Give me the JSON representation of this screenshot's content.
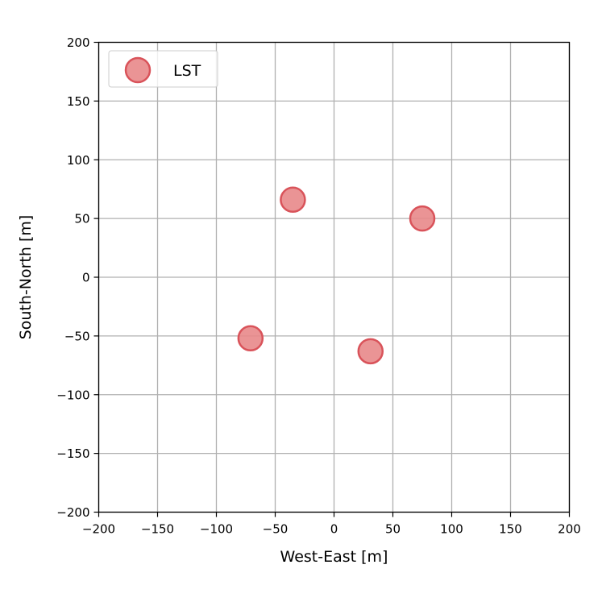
{
  "chart_data": {
    "type": "scatter",
    "title": "",
    "xlabel": "West-East [m]",
    "ylabel": "South-North [m]",
    "xlim": [
      -200,
      200
    ],
    "ylim": [
      -200,
      200
    ],
    "xticks": [
      -200,
      -150,
      -100,
      -50,
      0,
      50,
      100,
      150,
      200
    ],
    "yticks": [
      -200,
      -150,
      -100,
      -50,
      0,
      50,
      100,
      150,
      200
    ],
    "xtick_labels": [
      "−200",
      "−150",
      "−100",
      "−50",
      "0",
      "50",
      "100",
      "150",
      "200"
    ],
    "ytick_labels": [
      "−200",
      "−150",
      "−100",
      "−50",
      "0",
      "50",
      "100",
      "150",
      "200"
    ],
    "grid": true,
    "legend_position": "top-left",
    "series": [
      {
        "name": "LST",
        "color": "#e8888a",
        "edge_color": "#d9535a",
        "points": [
          {
            "x": -35,
            "y": 66
          },
          {
            "x": 75,
            "y": 50
          },
          {
            "x": -71,
            "y": -52
          },
          {
            "x": 31,
            "y": -63
          }
        ]
      }
    ]
  }
}
